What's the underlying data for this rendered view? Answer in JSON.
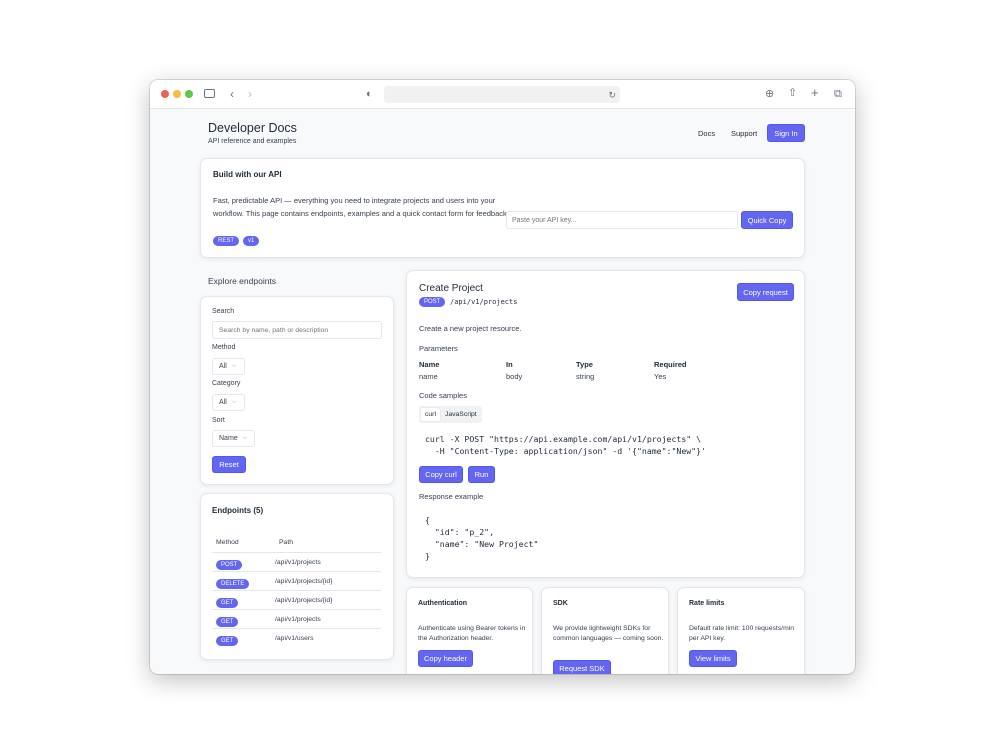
{
  "header": {
    "title": "Developer Docs",
    "subtitle": "API reference and examples",
    "nav": [
      "Docs",
      "Support"
    ],
    "sign_in": "Sign In"
  },
  "hero": {
    "title": "Build with our API",
    "description": "Fast, predictable API — everything you need to integrate projects and users into your workflow. This page contains endpoints, examples and a quick contact form for feedback.",
    "badges": [
      "REST",
      "v1"
    ],
    "api_key_placeholder": "Paste your API key...",
    "quick_copy": "Quick Copy"
  },
  "explore": {
    "title": "Explore endpoints",
    "search_label": "Search",
    "search_placeholder": "Search by name, path or description",
    "method_label": "Method",
    "method_value": "All",
    "category_label": "Category",
    "category_value": "All",
    "sort_label": "Sort",
    "sort_value": "Name",
    "reset": "Reset"
  },
  "endpoints": {
    "title": "Endpoints (5)",
    "columns": [
      "Method",
      "Path"
    ],
    "rows": [
      {
        "method": "POST",
        "path": "/api/v1/projects"
      },
      {
        "method": "DELETE",
        "path": "/api/v1/projects/{id}"
      },
      {
        "method": "GET",
        "path": "/api/v1/projects/{id}"
      },
      {
        "method": "GET",
        "path": "/api/v1/projects"
      },
      {
        "method": "GET",
        "path": "/api/v1/users"
      }
    ]
  },
  "detail": {
    "title": "Create Project",
    "method": "POST",
    "path": "/api/v1/projects",
    "copy_request": "Copy request",
    "description": "Create a new project resource.",
    "params_title": "Parameters",
    "param_columns": [
      "Name",
      "In",
      "Type",
      "Required"
    ],
    "param_row": [
      "name",
      "body",
      "string",
      "Yes"
    ],
    "code_title": "Code samples",
    "code_tabs": [
      "curl",
      "JavaScript"
    ],
    "code": "curl -X POST \"https://api.example.com/api/v1/projects\" \\\n  -H \"Content-Type: application/json\" -d '{\"name\":\"New\"}'",
    "copy_curl": "Copy curl",
    "run": "Run",
    "response_title": "Response example",
    "response": "{\n  \"id\": \"p_2\",\n  \"name\": \"New Project\"\n}"
  },
  "info_cards": [
    {
      "title": "Authentication",
      "text": "Authenticate using Bearer tokens in the Authorization header.",
      "button": "Copy header"
    },
    {
      "title": "SDK",
      "text": "We provide lightweight SDKs for common languages — coming soon.",
      "button": "Request SDK"
    },
    {
      "title": "Rate limits",
      "text": "Default rate limit: 100 requests/min per API key.",
      "button": "View limits"
    }
  ],
  "colors": {
    "accent": "#6366f1",
    "page_bg": "#f8f9fb"
  }
}
